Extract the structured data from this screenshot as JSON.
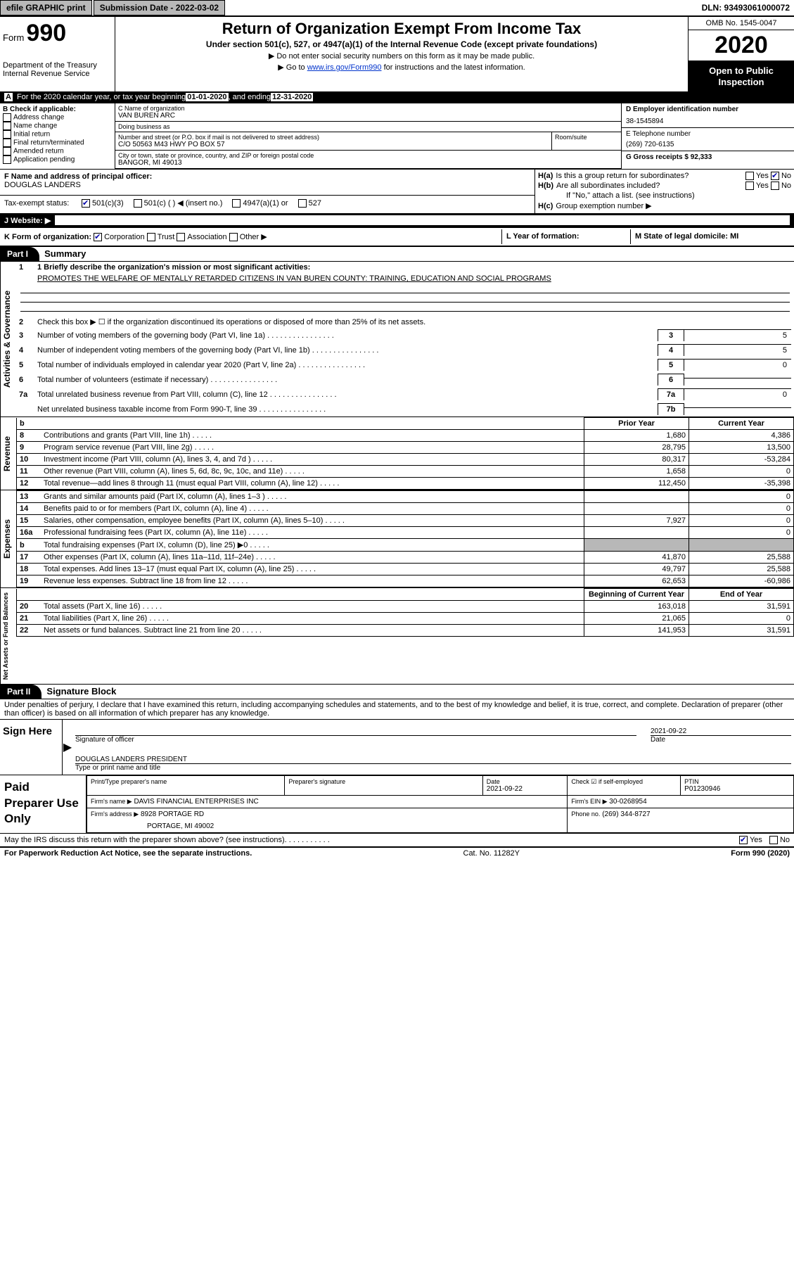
{
  "topbar": {
    "efile": "efile GRAPHIC print",
    "submission_label": "Submission Date - 2022-03-02",
    "dln_label": "DLN: 93493061000072"
  },
  "header": {
    "form_label": "Form",
    "form_number": "990",
    "dept": "Department of the Treasury\nInternal Revenue Service",
    "title": "Return of Organization Exempt From Income Tax",
    "subtitle": "Under section 501(c), 527, or 4947(a)(1) of the Internal Revenue Code (except private foundations)",
    "note1": "▶ Do not enter social security numbers on this form as it may be made public.",
    "note2_a": "▶ Go to ",
    "note2_link": "www.irs.gov/Form990",
    "note2_b": " for instructions and the latest information.",
    "omb": "OMB No. 1545-0047",
    "year": "2020",
    "open": "Open to Public Inspection"
  },
  "bar_a": {
    "prefix": "A",
    "text_a": "For the 2020 calendar year, or tax year beginning ",
    "begin": "01-01-2020",
    "text_b": " , and ending ",
    "end": "12-31-2020"
  },
  "section_b": {
    "label": "B Check if applicable:",
    "items": [
      "Address change",
      "Name change",
      "Initial return",
      "Final return/terminated",
      "Amended return",
      "Application pending"
    ]
  },
  "section_c": {
    "name_label": "C Name of organization",
    "name": "VAN BUREN ARC",
    "dba_label": "Doing business as",
    "dba": "",
    "addr_label": "Number and street (or P.O. box if mail is not delivered to street address)",
    "room_label": "Room/suite",
    "addr": "C/O 50563 M43 HWY PO BOX 57",
    "city_label": "City or town, state or province, country, and ZIP or foreign postal code",
    "city": "BANGOR, MI  49013"
  },
  "section_d": {
    "ein_label": "D Employer identification number",
    "ein": "38-1545894",
    "phone_label": "E Telephone number",
    "phone": "(269) 720-6135",
    "gross_label": "G Gross receipts $ 92,333"
  },
  "section_f": {
    "label": "F  Name and address of principal officer:",
    "name": "DOUGLAS LANDERS"
  },
  "section_h": {
    "ha_label": "H(a)",
    "ha_text": "Is this a group return for subordinates?",
    "hb_label": "H(b)",
    "hb_text": "Are all subordinates included?",
    "hb_note": "If \"No,\" attach a list. (see instructions)",
    "hc_label": "H(c)",
    "hc_text": "Group exemption number ▶",
    "yes": "Yes",
    "no": "No"
  },
  "tax_exempt": {
    "label": "Tax-exempt status:",
    "opt1": "501(c)(3)",
    "opt2": "501(c) (  ) ◀ (insert no.)",
    "opt3": "4947(a)(1) or",
    "opt4": "527"
  },
  "website": {
    "label": "J   Website: ▶"
  },
  "row_k": {
    "k": "K Form of organization:",
    "k_opts": [
      "Corporation",
      "Trust",
      "Association",
      "Other ▶"
    ],
    "l": "L Year of formation:",
    "m": "M State of legal domicile: MI"
  },
  "part1": {
    "label": "Part I",
    "title": "Summary"
  },
  "summary": {
    "tabs": [
      "Activities & Governance",
      "Revenue",
      "Expenses",
      "Net Assets or Fund Balances"
    ],
    "line1_label": "1  Briefly describe the organization's mission or most significant activities:",
    "line1_value": "PROMOTES THE WELFARE OF MENTALLY RETARDED CITIZENS IN VAN BUREN COUNTY: TRAINING, EDUCATION AND SOCIAL PROGRAMS",
    "line2": "Check this box ▶ ☐  if the organization discontinued its operations or disposed of more than 25% of its net assets.",
    "gov_rows": [
      {
        "n": "3",
        "t": "Number of voting members of the governing body (Part VI, line 1a)",
        "c": "3",
        "v": "5"
      },
      {
        "n": "4",
        "t": "Number of independent voting members of the governing body (Part VI, line 1b)",
        "c": "4",
        "v": "5"
      },
      {
        "n": "5",
        "t": "Total number of individuals employed in calendar year 2020 (Part V, line 2a)",
        "c": "5",
        "v": "0"
      },
      {
        "n": "6",
        "t": "Total number of volunteers (estimate if necessary)",
        "c": "6",
        "v": ""
      },
      {
        "n": "7a",
        "t": "Total unrelated business revenue from Part VIII, column (C), line 12",
        "c": "7a",
        "v": "0"
      },
      {
        "n": "",
        "t": "Net unrelated business taxable income from Form 990-T, line 39",
        "c": "7b",
        "v": ""
      }
    ],
    "col_prior": "Prior Year",
    "col_current": "Current Year",
    "col_begin": "Beginning of Current Year",
    "col_end": "End of Year",
    "revenue_rows": [
      {
        "n": "8",
        "t": "Contributions and grants (Part VIII, line 1h)",
        "p": "1,680",
        "c": "4,386"
      },
      {
        "n": "9",
        "t": "Program service revenue (Part VIII, line 2g)",
        "p": "28,795",
        "c": "13,500"
      },
      {
        "n": "10",
        "t": "Investment income (Part VIII, column (A), lines 3, 4, and 7d )",
        "p": "80,317",
        "c": "-53,284"
      },
      {
        "n": "11",
        "t": "Other revenue (Part VIII, column (A), lines 5, 6d, 8c, 9c, 10c, and 11e)",
        "p": "1,658",
        "c": "0"
      },
      {
        "n": "12",
        "t": "Total revenue—add lines 8 through 11 (must equal Part VIII, column (A), line 12)",
        "p": "112,450",
        "c": "-35,398"
      }
    ],
    "expense_rows": [
      {
        "n": "13",
        "t": "Grants and similar amounts paid (Part IX, column (A), lines 1–3 )",
        "p": "",
        "c": "0"
      },
      {
        "n": "14",
        "t": "Benefits paid to or for members (Part IX, column (A), line 4)",
        "p": "",
        "c": "0"
      },
      {
        "n": "15",
        "t": "Salaries, other compensation, employee benefits (Part IX, column (A), lines 5–10)",
        "p": "7,927",
        "c": "0"
      },
      {
        "n": "16a",
        "t": "Professional fundraising fees (Part IX, column (A), line 11e)",
        "p": "",
        "c": "0"
      },
      {
        "n": "b",
        "t": "Total fundraising expenses (Part IX, column (D), line 25) ▶0",
        "p": "shade",
        "c": "shade"
      },
      {
        "n": "17",
        "t": "Other expenses (Part IX, column (A), lines 11a–11d, 11f–24e)",
        "p": "41,870",
        "c": "25,588"
      },
      {
        "n": "18",
        "t": "Total expenses. Add lines 13–17 (must equal Part IX, column (A), line 25)",
        "p": "49,797",
        "c": "25,588"
      },
      {
        "n": "19",
        "t": "Revenue less expenses. Subtract line 18 from line 12",
        "p": "62,653",
        "c": "-60,986"
      }
    ],
    "assets_rows": [
      {
        "n": "20",
        "t": "Total assets (Part X, line 16)",
        "p": "163,018",
        "c": "31,591"
      },
      {
        "n": "21",
        "t": "Total liabilities (Part X, line 26)",
        "p": "21,065",
        "c": "0"
      },
      {
        "n": "22",
        "t": "Net assets or fund balances. Subtract line 21 from line 20",
        "p": "141,953",
        "c": "31,591"
      }
    ]
  },
  "part2": {
    "label": "Part II",
    "title": "Signature Block"
  },
  "sig": {
    "declare": "Under penalties of perjury, I declare that I have examined this return, including accompanying schedules and statements, and to the best of my knowledge and belief, it is true, correct, and complete. Declaration of preparer (other than officer) is based on all information of which preparer has any knowledge.",
    "sign_here": "Sign Here",
    "sig_officer": "Signature of officer",
    "date": "Date",
    "date_val": "2021-09-22",
    "officer_name": "DOUGLAS LANDERS  PRESIDENT",
    "type_name": "Type or print name and title"
  },
  "paid": {
    "label": "Paid Preparer Use Only",
    "prep_name_label": "Print/Type preparer's name",
    "prep_sig_label": "Preparer's signature",
    "date_label": "Date",
    "date_val": "2021-09-22",
    "check_label": "Check ☑ if self-employed",
    "ptin_label": "PTIN",
    "ptin": "P01230946",
    "firm_name_label": "Firm's name   ▶",
    "firm_name": "DAVIS FINANCIAL ENTERPRISES INC",
    "firm_ein_label": "Firm's EIN ▶",
    "firm_ein": "30-0268954",
    "firm_addr_label": "Firm's address ▶",
    "firm_addr": "8928 PORTAGE RD",
    "firm_city": "PORTAGE, MI  49002",
    "firm_phone_label": "Phone no.",
    "firm_phone": "(269) 344-8727"
  },
  "bottom": {
    "discuss": "May the IRS discuss this return with the preparer shown above? (see instructions)",
    "yes": "Yes",
    "no": "No",
    "paperwork": "For Paperwork Reduction Act Notice, see the separate instructions.",
    "catno": "Cat. No. 11282Y",
    "formver": "Form 990 (2020)"
  }
}
